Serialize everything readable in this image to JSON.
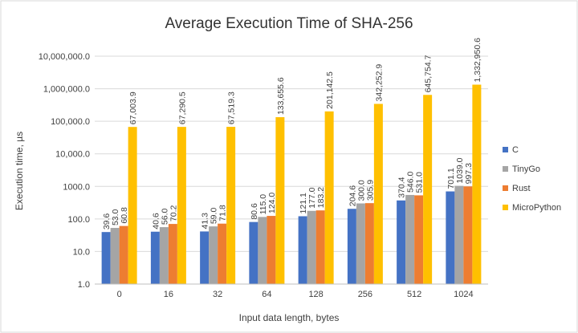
{
  "chart_data": {
    "type": "bar",
    "title": "Average Execution Time of SHA-256",
    "xlabel": "Input data length, bytes",
    "ylabel": "Execution time, µs",
    "yscale": "log",
    "ylim": [
      1,
      10000000
    ],
    "yticks": [
      1,
      10,
      100,
      1000,
      10000,
      100000,
      1000000,
      10000000
    ],
    "ytick_labels": [
      "1.0",
      "10.0",
      "100.0",
      "1000.0",
      "10,000.0",
      "100,000.0",
      "1,000,000.0",
      "10,000,000.0"
    ],
    "categories": [
      "0",
      "16",
      "32",
      "64",
      "128",
      "256",
      "512",
      "1024"
    ],
    "grid": true,
    "legend_position": "right",
    "series": [
      {
        "name": "C",
        "color": "#4472C4",
        "values": [
          39.6,
          40.6,
          41.3,
          80.6,
          121.1,
          204.6,
          370.4,
          701.1
        ],
        "labels": [
          "39.6",
          "40.6",
          "41.3",
          "80.6",
          "121.1",
          "204.6",
          "370.4",
          "701.1"
        ]
      },
      {
        "name": "TinyGo",
        "color": "#A5A5A5",
        "values": [
          53.0,
          56.0,
          59.0,
          115.0,
          177.0,
          300.0,
          546.0,
          1039.0
        ],
        "labels": [
          "53.0",
          "56.0",
          "59.0",
          "115.0",
          "177.0",
          "300.0",
          "546.0",
          "1039.0"
        ]
      },
      {
        "name": "Rust",
        "color": "#ED7D31",
        "values": [
          60.8,
          70.2,
          71.8,
          124.0,
          183.2,
          305.9,
          531.0,
          997.3
        ],
        "labels": [
          "60.8",
          "70.2",
          "71.8",
          "124.0",
          "183.2",
          "305.9",
          "531.0",
          "997.3"
        ]
      },
      {
        "name": "MicroPython",
        "color": "#FFC000",
        "values": [
          67003.9,
          67290.5,
          67519.3,
          133655.6,
          201142.5,
          342252.9,
          645754.7,
          1332950.6
        ],
        "labels": [
          "67,003.9",
          "67,290.5",
          "67,519.3",
          "133,655.6",
          "201,142.5",
          "342,252.9",
          "645,754.7",
          "1,332,950.6"
        ]
      }
    ]
  }
}
